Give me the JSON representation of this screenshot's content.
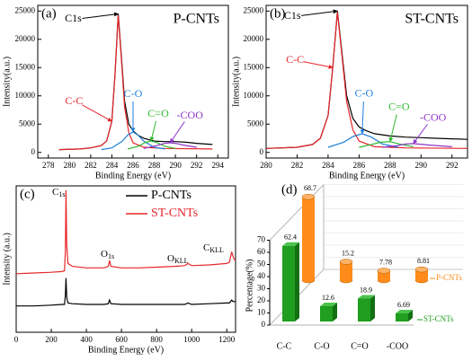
{
  "chart_data": [
    {
      "type": "line",
      "label": "(a)",
      "title": "P-CNTs",
      "xlabel": "Binding Energy (eV)",
      "ylabel": "Intensity(a.u.)",
      "xlim": [
        277,
        295
      ],
      "xticks": [
        278,
        280,
        282,
        284,
        286,
        288,
        290,
        292,
        294
      ],
      "ylim": [
        -1000,
        26000
      ],
      "yticks": [
        0,
        5000,
        10000,
        15000,
        20000,
        25000
      ],
      "series": [
        {
          "name": "C1s",
          "color": "#000000",
          "x": [
            279,
            281,
            282,
            283,
            283.5,
            284,
            284.3,
            284.6,
            284.9,
            285.2,
            285.6,
            286,
            286.5,
            287,
            288,
            289,
            290,
            291,
            292,
            293.5
          ],
          "values": [
            500,
            600,
            800,
            1200,
            2000,
            5500,
            14000,
            24500,
            17000,
            9000,
            5000,
            3800,
            3000,
            2500,
            2000,
            1900,
            1900,
            1800,
            1600,
            1400
          ]
        },
        {
          "name": "C-C",
          "color": "#e8262a",
          "x": [
            279,
            281,
            282,
            283,
            283.5,
            284,
            284.3,
            284.6,
            284.9,
            285.2,
            285.6,
            286,
            287,
            289,
            293.5
          ],
          "values": [
            500,
            600,
            800,
            1200,
            2000,
            5500,
            14000,
            24300,
            16500,
            8000,
            3500,
            1700,
            900,
            700,
            600
          ]
        },
        {
          "name": "C-O",
          "color": "#1e7fd8",
          "x": [
            283,
            284,
            285,
            285.5,
            286,
            286.5,
            287,
            288,
            289
          ],
          "values": [
            500,
            800,
            2000,
            3100,
            3600,
            3000,
            2000,
            900,
            600
          ]
        },
        {
          "name": "C=O",
          "color": "#2db82d",
          "x": [
            285.5,
            286.5,
            287.2,
            287.7,
            288.2,
            289,
            290
          ],
          "values": [
            600,
            1100,
            1800,
            2000,
            1800,
            1100,
            700
          ]
        },
        {
          "name": "-COO",
          "color": "#8e35c9",
          "x": [
            287,
            288,
            289,
            289.5,
            290,
            291,
            292
          ],
          "values": [
            700,
            1100,
            1600,
            1700,
            1600,
            1200,
            900
          ]
        }
      ]
    },
    {
      "type": "line",
      "label": "(b)",
      "title": "ST-CNTs",
      "xlabel": "Binding Energy (eV)",
      "ylabel": "Intensity(a.u.)",
      "xlim": [
        280,
        293
      ],
      "xticks": [
        280,
        282,
        284,
        286,
        288,
        290,
        292
      ],
      "ylim": [
        -1000,
        26000
      ],
      "yticks": [
        0,
        5000,
        10000,
        15000,
        20000,
        25000
      ],
      "series": [
        {
          "name": "C1s",
          "color": "#000000",
          "x": [
            280,
            282,
            283,
            283.5,
            284,
            284.3,
            284.6,
            284.9,
            285.2,
            285.6,
            286,
            286.5,
            287,
            288,
            289,
            290,
            291,
            292,
            293
          ],
          "values": [
            700,
            900,
            1400,
            2500,
            6500,
            15000,
            25000,
            17500,
            10000,
            6000,
            4500,
            3800,
            3300,
            2900,
            2700,
            2600,
            2500,
            2400,
            2300
          ]
        },
        {
          "name": "C-C",
          "color": "#e8262a",
          "x": [
            280,
            282,
            283,
            283.5,
            284,
            284.3,
            284.6,
            284.9,
            285.2,
            285.6,
            286,
            287,
            289,
            293
          ],
          "values": [
            700,
            900,
            1400,
            2500,
            6500,
            15000,
            24800,
            17000,
            9000,
            4000,
            2000,
            1000,
            800,
            700
          ]
        },
        {
          "name": "C-O",
          "color": "#1e7fd8",
          "x": [
            284,
            285,
            285.6,
            286.2,
            286.8,
            287.5,
            288.5
          ],
          "values": [
            900,
            1800,
            2800,
            3300,
            2700,
            1500,
            900
          ]
        },
        {
          "name": "C=O",
          "color": "#2db82d",
          "x": [
            286,
            286.8,
            287.4,
            288,
            288.6,
            289.5
          ],
          "values": [
            900,
            1400,
            1800,
            1900,
            1500,
            1000
          ]
        },
        {
          "name": "-COO",
          "color": "#8e35c9",
          "x": [
            287.5,
            288.5,
            289,
            289.5,
            290.5,
            292
          ],
          "values": [
            900,
            1200,
            1500,
            1550,
            1300,
            1000
          ]
        }
      ]
    },
    {
      "type": "line",
      "label": "(c)",
      "xlabel": "Binding Energy (eV)",
      "ylabel": "Intensity (a.u.)",
      "xlim": [
        0,
        1250
      ],
      "xticks": [
        0,
        200,
        400,
        600,
        800,
        1000,
        1200
      ],
      "ylim": [
        0,
        100
      ],
      "legend": "upper center",
      "series": [
        {
          "name": "P-CNTs",
          "color": "#000000",
          "x": [
            0,
            100,
            200,
            260,
            275,
            280,
            284,
            288,
            295,
            320,
            400,
            500,
            525,
            532,
            540,
            600,
            700,
            800,
            900,
            960,
            980,
            1000,
            1100,
            1200,
            1215,
            1228,
            1235,
            1242,
            1250
          ],
          "values": [
            18,
            18,
            18.5,
            19,
            19,
            25,
            37,
            24,
            20,
            19.5,
            19,
            19,
            19.5,
            22,
            19.5,
            19,
            19,
            19,
            19,
            19,
            20,
            19,
            19.5,
            20,
            20,
            22,
            21,
            21,
            21
          ]
        },
        {
          "name": "ST-CNTs",
          "color": "#e8262a",
          "x": [
            0,
            100,
            200,
            260,
            275,
            280,
            284,
            288,
            295,
            320,
            400,
            500,
            525,
            532,
            540,
            600,
            700,
            800,
            900,
            960,
            980,
            1000,
            1100,
            1200,
            1215,
            1228,
            1235,
            1242,
            1250
          ],
          "values": [
            40,
            40.5,
            41,
            41.5,
            42,
            55,
            97,
            60,
            47,
            45,
            44,
            44,
            45,
            49,
            45,
            44,
            44,
            44.5,
            45,
            45.5,
            47,
            45.5,
            46,
            47,
            48,
            55,
            52,
            50,
            49
          ]
        }
      ],
      "annotations": [
        {
          "text": "C",
          "sub": "1s"
        },
        {
          "text": "O",
          "sub": "1s"
        },
        {
          "text": "O",
          "sub": "KLL"
        },
        {
          "text": "C",
          "sub": "KLL"
        }
      ]
    },
    {
      "type": "bar3d",
      "label": "(d)",
      "ylabel": "Percentage(%)",
      "categories": [
        "C-C",
        "C-O",
        "C=O",
        "-COO"
      ],
      "ylim": [
        0,
        70
      ],
      "yticks": [
        0,
        10,
        20,
        30,
        40,
        50,
        60,
        70
      ],
      "series": [
        {
          "name": "P-CNTs",
          "color": "#ff8c1a",
          "values": [
            68.7,
            15.2,
            7.78,
            8.81
          ]
        },
        {
          "name": "ST-CNTs",
          "color": "#1f9e1f",
          "values": [
            62.4,
            12.6,
            18.9,
            6.69
          ]
        }
      ]
    }
  ]
}
